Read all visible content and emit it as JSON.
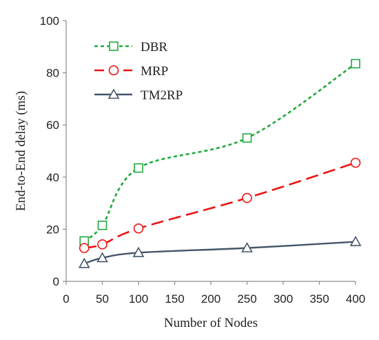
{
  "chart_data": {
    "type": "line",
    "xlabel": "Number of Nodes",
    "ylabel": "End-to-End delay (ms)",
    "xlim": [
      0,
      400
    ],
    "ylim": [
      0,
      100
    ],
    "xticks": [
      0,
      50,
      100,
      150,
      200,
      250,
      300,
      350,
      400
    ],
    "yticks": [
      0,
      20,
      40,
      60,
      80,
      100
    ],
    "grid": false,
    "legend_position": "top-left",
    "series": [
      {
        "name": "DBR",
        "color": "#1fa83a",
        "marker": "square",
        "dash": "short-dash",
        "x": [
          25,
          50,
          100,
          250,
          400
        ],
        "y": [
          15.5,
          21.5,
          43.5,
          55,
          83.5
        ]
      },
      {
        "name": "MRP",
        "color": "#ee1111",
        "marker": "circle",
        "dash": "long-dash",
        "x": [
          25,
          50,
          100,
          250,
          400
        ],
        "y": [
          12.8,
          14.2,
          20.3,
          32,
          45.5
        ]
      },
      {
        "name": "TM2RP",
        "color": "#44546a",
        "marker": "triangle",
        "dash": "solid",
        "x": [
          25,
          50,
          100,
          250,
          400
        ],
        "y": [
          6.8,
          9,
          11,
          12.8,
          15.2
        ]
      }
    ]
  }
}
